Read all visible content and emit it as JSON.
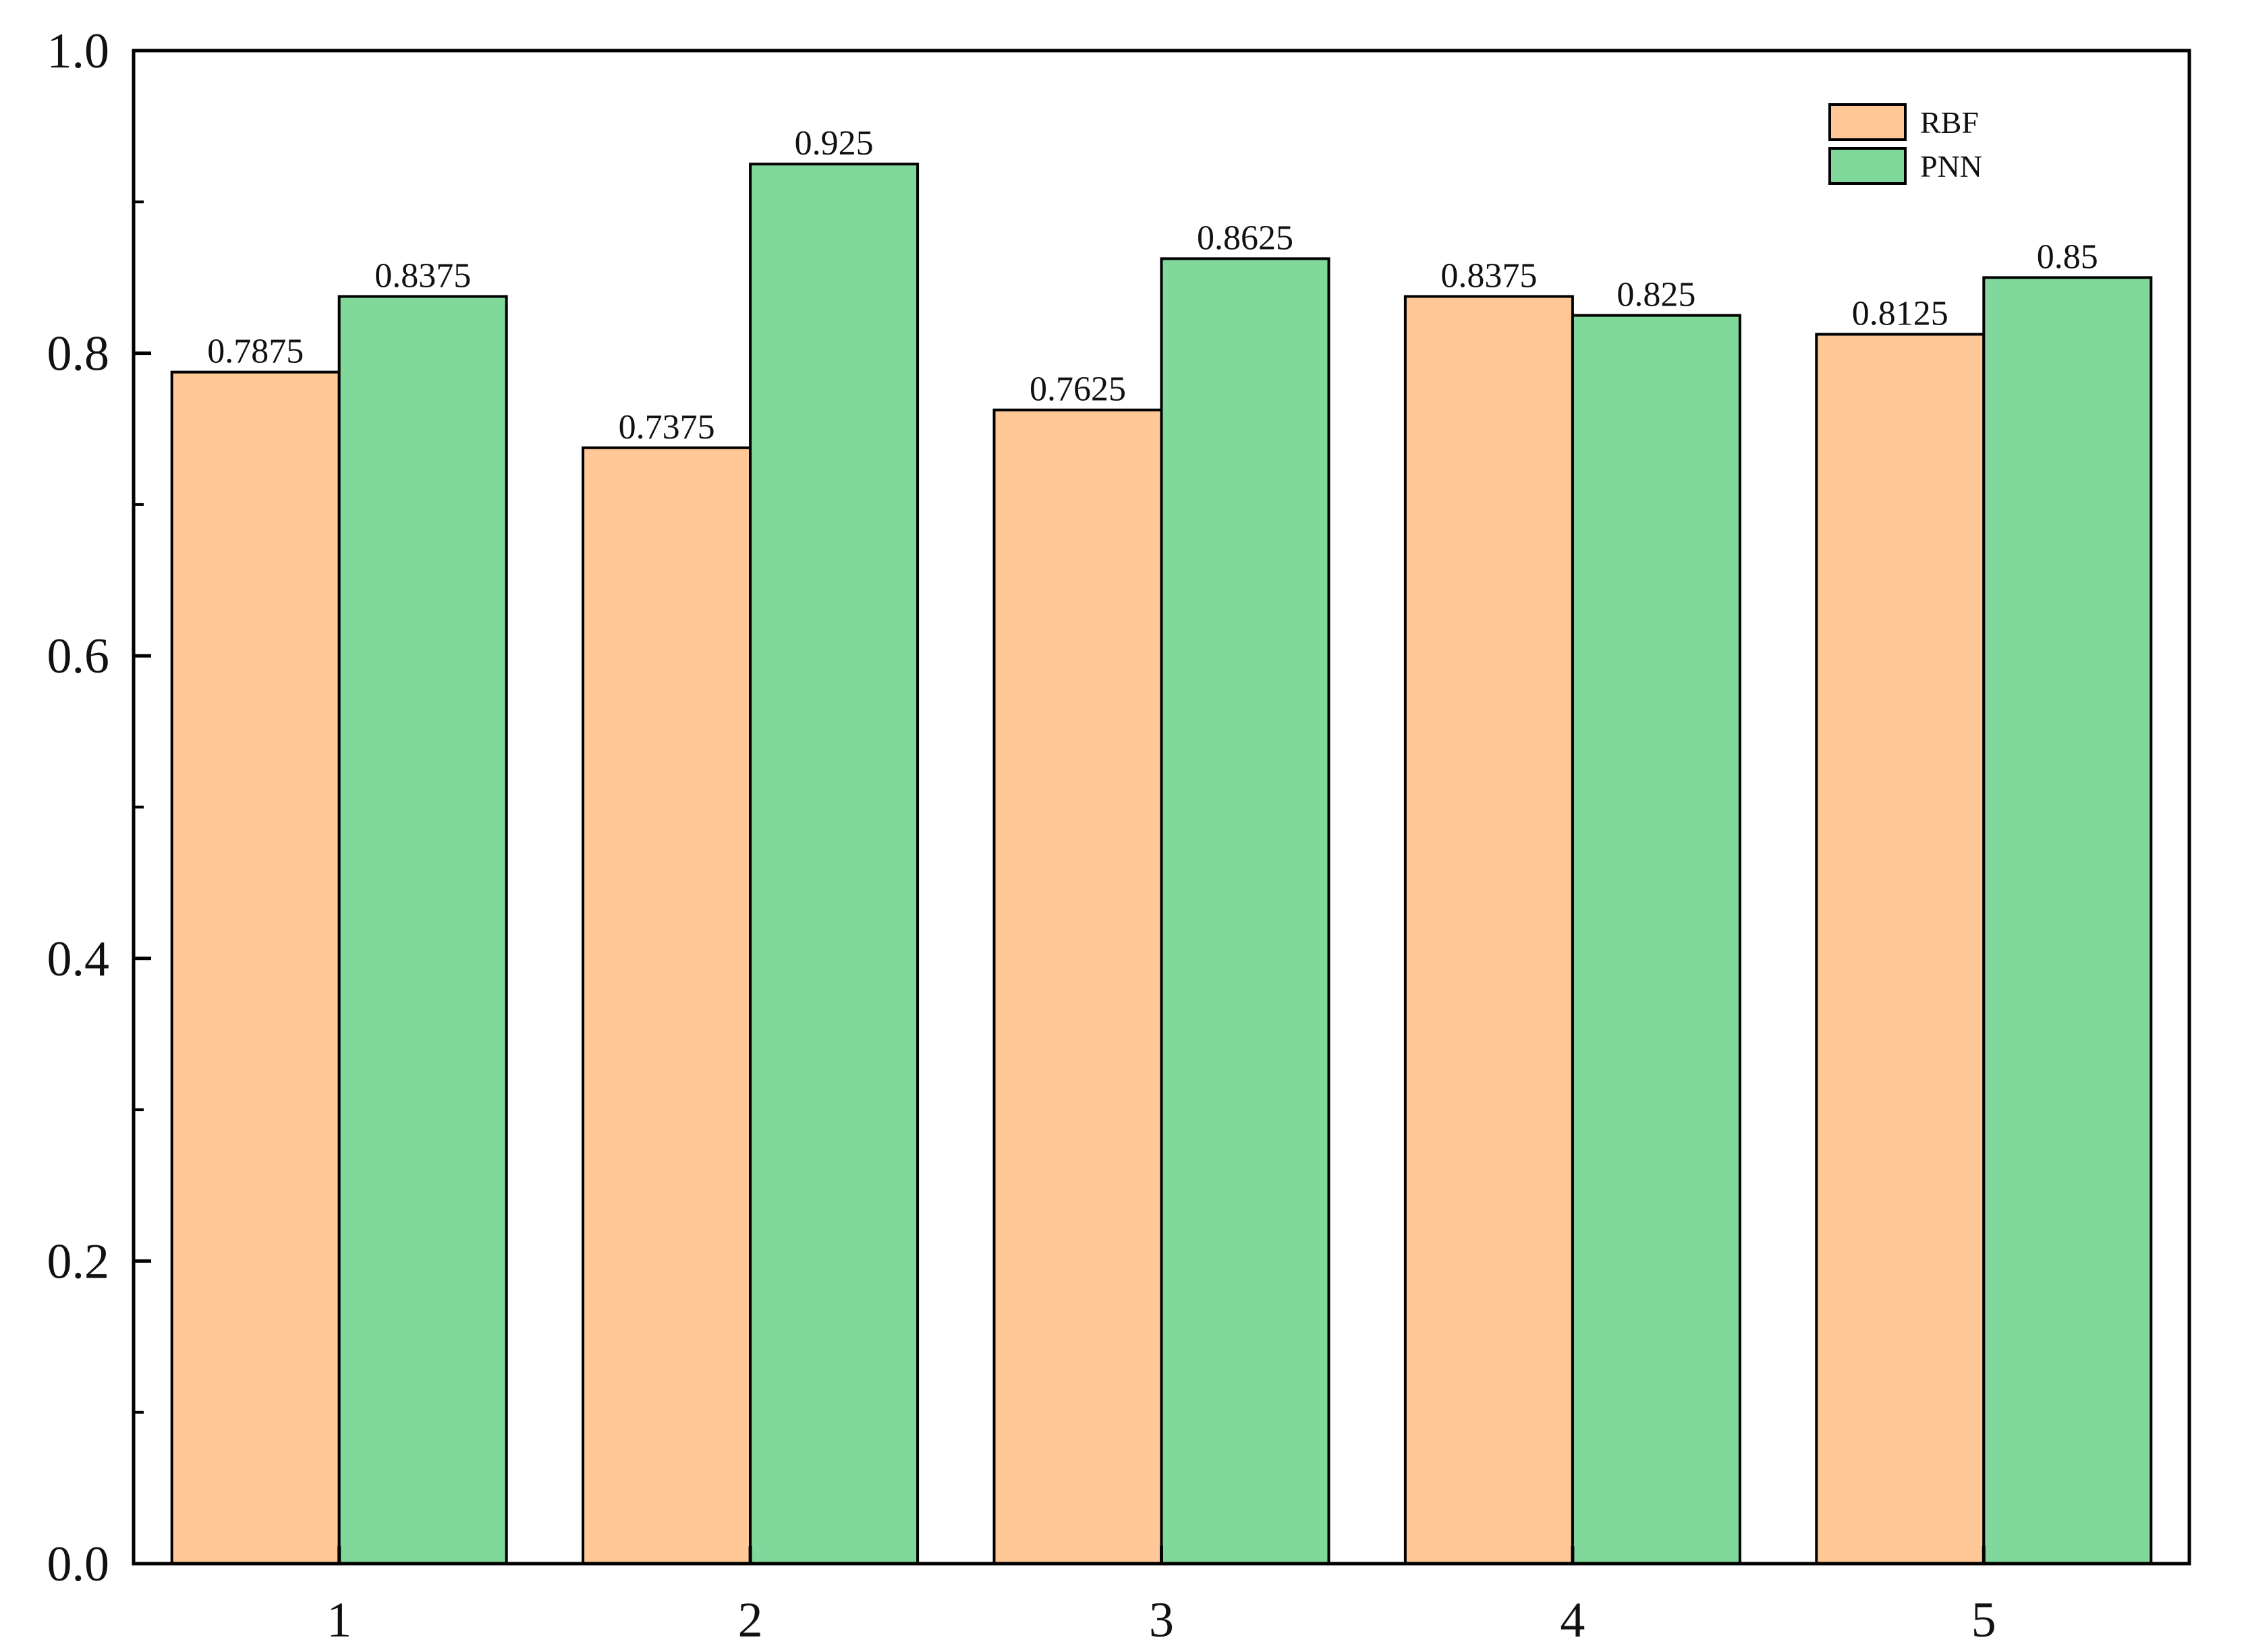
{
  "chart_data": {
    "type": "bar",
    "title": "",
    "xlabel": "",
    "ylabel": "",
    "categories": [
      "1",
      "2",
      "3",
      "4",
      "5"
    ],
    "series": [
      {
        "name": "RBF",
        "color": "#FFC896",
        "values": [
          0.7875,
          0.7375,
          0.7625,
          0.8375,
          0.8125
        ]
      },
      {
        "name": "PNN",
        "color": "#80D89A",
        "values": [
          0.8375,
          0.925,
          0.8625,
          0.825,
          0.85
        ]
      }
    ],
    "data_labels": [
      [
        "0.7875",
        "0.7375",
        "0.7625",
        "0.8375",
        "0.8125"
      ],
      [
        "0.8375",
        "0.925",
        "0.8625",
        "0.825",
        "0.85"
      ]
    ],
    "ylim": [
      0.0,
      1.0
    ],
    "yticks": [
      "0.0",
      "0.2",
      "0.4",
      "0.6",
      "0.8",
      "1.0"
    ],
    "grid": false,
    "legend": "top-right"
  }
}
